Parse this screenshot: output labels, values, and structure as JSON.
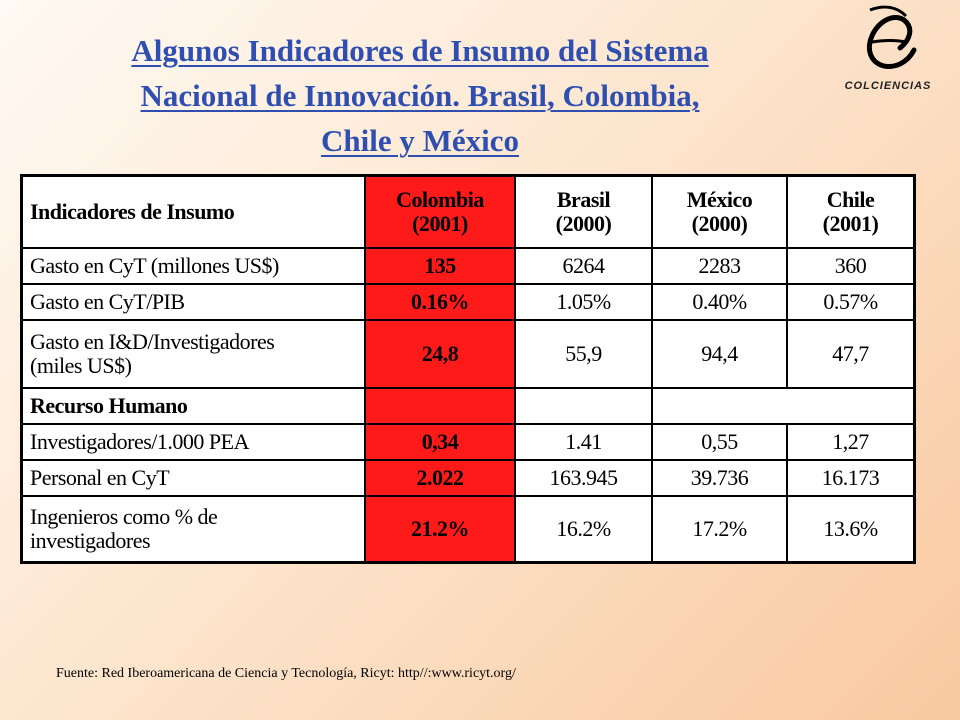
{
  "title": {
    "line1": "Algunos Indicadores de Insumo del Sistema",
    "line2": "Nacional de Innovación. Brasil, Colombia,",
    "line3": "Chile y México"
  },
  "logo": {
    "text": "COLCIENCIAS",
    "icon": "colciencias-logo-icon"
  },
  "table": {
    "header": {
      "label": "Indicadores de Insumo",
      "columns": [
        {
          "name": "Colombia",
          "year": "(2001)"
        },
        {
          "name": "Brasil",
          "year": "(2000)"
        },
        {
          "name": "México",
          "year": "(2000)"
        },
        {
          "name": "Chile",
          "year": "(2001)"
        }
      ]
    },
    "rows": [
      {
        "label": "Gasto en CyT (millones US$)",
        "values": [
          "135",
          "6264",
          "2283",
          "360"
        ]
      },
      {
        "label": "Gasto en CyT/PIB",
        "values": [
          "0.16%",
          "1.05%",
          "0.40%",
          "0.57%"
        ]
      },
      {
        "label_line1": "Gasto en I&D/Investigadores",
        "label_line2": "(miles US$)",
        "values": [
          "24,8",
          "55,9",
          "94,4",
          "47,7"
        ]
      },
      {
        "label": "Recurso Humano"
      },
      {
        "label": "Investigadores/1.000 PEA",
        "values": [
          "0,34",
          "1.41",
          "0,55",
          "1,27"
        ]
      },
      {
        "label": "Personal en CyT",
        "values": [
          "2.022",
          "163.945",
          "39.736",
          "16.173"
        ]
      },
      {
        "label_line1": "Ingenieros como % de",
        "label_line2": "investigadores",
        "values": [
          "21.2%",
          "16.2%",
          "17.2%",
          "13.6%"
        ]
      }
    ]
  },
  "source": "Fuente: Red Iberoamericana de Ciencia y Tecnología, Ricyt: http//:www.ricyt.org/",
  "colors": {
    "title": "#2f4fb0",
    "highlight": "#ff1a1a",
    "background": "#fde6cf"
  }
}
